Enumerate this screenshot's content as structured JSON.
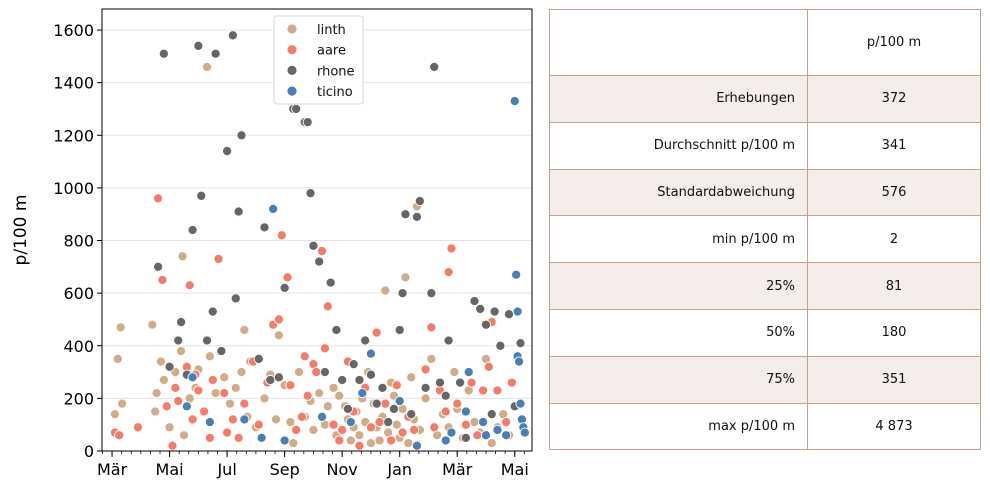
{
  "colors": {
    "linth": "#d2ac88",
    "aare": "#f47c6b",
    "rhone": "#666666",
    "ticino": "#4a7fb5"
  },
  "chart_data": {
    "type": "scatter",
    "ylabel": "p/100 m",
    "xlabel": "",
    "ylim": [
      0,
      1680
    ],
    "xlim": [
      -0.35,
      14.6
    ],
    "yticks": [
      0,
      200,
      400,
      600,
      800,
      1000,
      1200,
      1400,
      1600
    ],
    "xticks": [
      {
        "pos": 0,
        "label": "Mär"
      },
      {
        "pos": 2,
        "label": "Mai"
      },
      {
        "pos": 4,
        "label": "Jul"
      },
      {
        "pos": 6,
        "label": "Sep"
      },
      {
        "pos": 8,
        "label": "Nov"
      },
      {
        "pos": 10,
        "label": "Jan"
      },
      {
        "pos": 12,
        "label": "Mär"
      },
      {
        "pos": 14,
        "label": "Mai"
      }
    ],
    "grid": "horizontal",
    "legend_position": "top-center",
    "series": [
      {
        "name": "linth",
        "points": [
          [
            0.1,
            140
          ],
          [
            0.2,
            350
          ],
          [
            0.3,
            470
          ],
          [
            0.35,
            180
          ],
          [
            1.4,
            480
          ],
          [
            1.5,
            150
          ],
          [
            1.55,
            220
          ],
          [
            1.7,
            340
          ],
          [
            1.8,
            270
          ],
          [
            2.0,
            90
          ],
          [
            2.2,
            300
          ],
          [
            2.4,
            380
          ],
          [
            2.45,
            740
          ],
          [
            2.5,
            60
          ],
          [
            2.7,
            200
          ],
          [
            2.9,
            240
          ],
          [
            3.0,
            310
          ],
          [
            3.3,
            1460
          ],
          [
            3.4,
            360
          ],
          [
            3.6,
            220
          ],
          [
            3.9,
            280
          ],
          [
            4.1,
            180
          ],
          [
            4.3,
            240
          ],
          [
            4.5,
            300
          ],
          [
            4.6,
            460
          ],
          [
            4.7,
            130
          ],
          [
            4.8,
            340
          ],
          [
            5.0,
            90
          ],
          [
            5.3,
            200
          ],
          [
            5.5,
            290
          ],
          [
            5.7,
            120
          ],
          [
            5.8,
            440
          ],
          [
            6.0,
            250
          ],
          [
            6.2,
            110
          ],
          [
            6.3,
            30
          ],
          [
            6.5,
            300
          ],
          [
            6.7,
            130
          ],
          [
            6.9,
            190
          ],
          [
            7.0,
            80
          ],
          [
            7.2,
            220
          ],
          [
            7.4,
            100
          ],
          [
            7.5,
            170
          ],
          [
            7.7,
            240
          ],
          [
            7.8,
            60
          ],
          [
            7.9,
            210
          ],
          [
            8.1,
            170
          ],
          [
            8.2,
            120
          ],
          [
            8.3,
            40
          ],
          [
            8.4,
            90
          ],
          [
            8.5,
            150
          ],
          [
            8.6,
            60
          ],
          [
            8.7,
            200
          ],
          [
            8.8,
            110
          ],
          [
            8.9,
            300
          ],
          [
            9.0,
            30
          ],
          [
            9.1,
            180
          ],
          [
            9.2,
            90
          ],
          [
            9.3,
            40
          ],
          [
            9.4,
            130
          ],
          [
            9.5,
            610
          ],
          [
            9.6,
            70
          ],
          [
            9.7,
            260
          ],
          [
            9.8,
            210
          ],
          [
            9.9,
            100
          ],
          [
            10.0,
            50
          ],
          [
            10.1,
            160
          ],
          [
            10.2,
            660
          ],
          [
            10.3,
            30
          ],
          [
            10.4,
            280
          ],
          [
            10.5,
            120
          ],
          [
            10.6,
            930
          ],
          [
            10.7,
            80
          ],
          [
            10.9,
            200
          ],
          [
            11.1,
            350
          ],
          [
            11.3,
            60
          ],
          [
            11.5,
            140
          ],
          [
            11.7,
            90
          ],
          [
            11.9,
            300
          ],
          [
            12.0,
            160
          ],
          [
            12.2,
            50
          ],
          [
            12.4,
            230
          ],
          [
            12.6,
            110
          ],
          [
            12.8,
            70
          ],
          [
            13.0,
            350
          ],
          [
            13.2,
            30
          ],
          [
            13.4,
            90
          ],
          [
            13.6,
            140
          ],
          [
            13.8,
            60
          ]
        ]
      },
      {
        "name": "aare",
        "points": [
          [
            0.1,
            70
          ],
          [
            0.25,
            60
          ],
          [
            0.9,
            90
          ],
          [
            1.6,
            960
          ],
          [
            1.75,
            650
          ],
          [
            1.9,
            170
          ],
          [
            2.1,
            20
          ],
          [
            2.2,
            240
          ],
          [
            2.3,
            190
          ],
          [
            2.6,
            320
          ],
          [
            2.7,
            630
          ],
          [
            2.8,
            120
          ],
          [
            2.9,
            290
          ],
          [
            3.0,
            230
          ],
          [
            3.2,
            150
          ],
          [
            3.4,
            50
          ],
          [
            3.5,
            270
          ],
          [
            3.7,
            730
          ],
          [
            3.9,
            220
          ],
          [
            4.0,
            70
          ],
          [
            4.2,
            120
          ],
          [
            4.4,
            50
          ],
          [
            4.6,
            180
          ],
          [
            4.9,
            340
          ],
          [
            5.1,
            100
          ],
          [
            5.4,
            260
          ],
          [
            5.6,
            480
          ],
          [
            5.8,
            500
          ],
          [
            5.9,
            820
          ],
          [
            6.1,
            660
          ],
          [
            6.2,
            250
          ],
          [
            6.4,
            80
          ],
          [
            6.6,
            130
          ],
          [
            6.7,
            360
          ],
          [
            6.8,
            210
          ],
          [
            7.0,
            330
          ],
          [
            7.1,
            300
          ],
          [
            7.3,
            760
          ],
          [
            7.4,
            390
          ],
          [
            7.5,
            550
          ],
          [
            7.7,
            100
          ],
          [
            7.9,
            40
          ],
          [
            8.0,
            80
          ],
          [
            8.2,
            340
          ],
          [
            8.4,
            150
          ],
          [
            8.6,
            20
          ],
          [
            8.8,
            240
          ],
          [
            9.0,
            90
          ],
          [
            9.2,
            450
          ],
          [
            9.3,
            110
          ],
          [
            9.5,
            180
          ],
          [
            9.7,
            40
          ],
          [
            9.9,
            250
          ],
          [
            10.1,
            70
          ],
          [
            10.3,
            130
          ],
          [
            10.5,
            80
          ],
          [
            10.9,
            310
          ],
          [
            11.1,
            470
          ],
          [
            11.2,
            90
          ],
          [
            11.4,
            230
          ],
          [
            11.6,
            150
          ],
          [
            11.7,
            680
          ],
          [
            11.8,
            770
          ],
          [
            12.0,
            180
          ],
          [
            12.3,
            100
          ],
          [
            12.5,
            260
          ],
          [
            12.7,
            60
          ],
          [
            12.9,
            230
          ],
          [
            13.1,
            320
          ],
          [
            13.2,
            490
          ],
          [
            13.4,
            230
          ],
          [
            13.7,
            110
          ],
          [
            13.9,
            260
          ]
        ]
      },
      {
        "name": "rhone",
        "points": [
          [
            1.6,
            700
          ],
          [
            1.8,
            1510
          ],
          [
            2.0,
            320
          ],
          [
            2.3,
            420
          ],
          [
            2.4,
            490
          ],
          [
            2.6,
            290
          ],
          [
            2.8,
            840
          ],
          [
            3.0,
            1540
          ],
          [
            3.1,
            970
          ],
          [
            3.3,
            420
          ],
          [
            3.5,
            530
          ],
          [
            3.6,
            1510
          ],
          [
            3.8,
            380
          ],
          [
            4.0,
            1140
          ],
          [
            4.2,
            1580
          ],
          [
            4.3,
            580
          ],
          [
            4.4,
            910
          ],
          [
            4.5,
            1200
          ],
          [
            5.1,
            350
          ],
          [
            5.3,
            850
          ],
          [
            5.5,
            270
          ],
          [
            5.8,
            280
          ],
          [
            6.0,
            620
          ],
          [
            6.3,
            1300
          ],
          [
            6.4,
            1300
          ],
          [
            6.7,
            1250
          ],
          [
            6.8,
            1250
          ],
          [
            6.9,
            980
          ],
          [
            7.0,
            780
          ],
          [
            7.2,
            720
          ],
          [
            7.4,
            300
          ],
          [
            7.6,
            640
          ],
          [
            7.8,
            460
          ],
          [
            8.0,
            270
          ],
          [
            8.2,
            160
          ],
          [
            8.4,
            330
          ],
          [
            8.6,
            270
          ],
          [
            8.8,
            420
          ],
          [
            9.0,
            290
          ],
          [
            9.2,
            180
          ],
          [
            9.4,
            240
          ],
          [
            9.6,
            110
          ],
          [
            9.8,
            160
          ],
          [
            10.0,
            460
          ],
          [
            10.1,
            600
          ],
          [
            10.2,
            900
          ],
          [
            10.4,
            140
          ],
          [
            10.6,
            890
          ],
          [
            10.7,
            950
          ],
          [
            10.9,
            240
          ],
          [
            11.1,
            600
          ],
          [
            11.2,
            1460
          ],
          [
            11.4,
            260
          ],
          [
            11.6,
            210
          ],
          [
            11.7,
            420
          ],
          [
            12.1,
            260
          ],
          [
            12.3,
            50
          ],
          [
            12.6,
            570
          ],
          [
            12.8,
            540
          ],
          [
            13.0,
            480
          ],
          [
            13.2,
            140
          ],
          [
            13.3,
            530
          ],
          [
            13.5,
            400
          ],
          [
            13.8,
            520
          ],
          [
            14.0,
            170
          ],
          [
            14.2,
            410
          ]
        ]
      },
      {
        "name": "ticino",
        "points": [
          [
            2.6,
            170
          ],
          [
            2.8,
            280
          ],
          [
            3.4,
            110
          ],
          [
            4.6,
            120
          ],
          [
            5.2,
            50
          ],
          [
            5.6,
            920
          ],
          [
            6.0,
            40
          ],
          [
            7.3,
            130
          ],
          [
            8.3,
            110
          ],
          [
            8.7,
            220
          ],
          [
            9.0,
            370
          ],
          [
            10.0,
            190
          ],
          [
            10.6,
            20
          ],
          [
            11.6,
            40
          ],
          [
            11.8,
            70
          ],
          [
            12.3,
            150
          ],
          [
            12.4,
            300
          ],
          [
            12.9,
            110
          ],
          [
            13.0,
            60
          ],
          [
            13.4,
            80
          ],
          [
            13.7,
            60
          ],
          [
            14.0,
            1330
          ],
          [
            14.05,
            670
          ],
          [
            14.1,
            530
          ],
          [
            14.1,
            360
          ],
          [
            14.15,
            340
          ],
          [
            14.2,
            180
          ],
          [
            14.25,
            120
          ],
          [
            14.3,
            90
          ],
          [
            14.35,
            70
          ]
        ]
      }
    ]
  },
  "table": {
    "header": [
      "",
      "p/100 m"
    ],
    "rows": [
      {
        "label": "Erhebungen",
        "value": "372"
      },
      {
        "label": "Durchschnitt p/100 m",
        "value": "341"
      },
      {
        "label": "Standardabweichung",
        "value": "576"
      },
      {
        "label": "min p/100 m",
        "value": "2"
      },
      {
        "label": "25%",
        "value": "81"
      },
      {
        "label": "50%",
        "value": "180"
      },
      {
        "label": "75%",
        "value": "351"
      },
      {
        "label": "max p/100 m",
        "value": "4 873"
      }
    ]
  }
}
